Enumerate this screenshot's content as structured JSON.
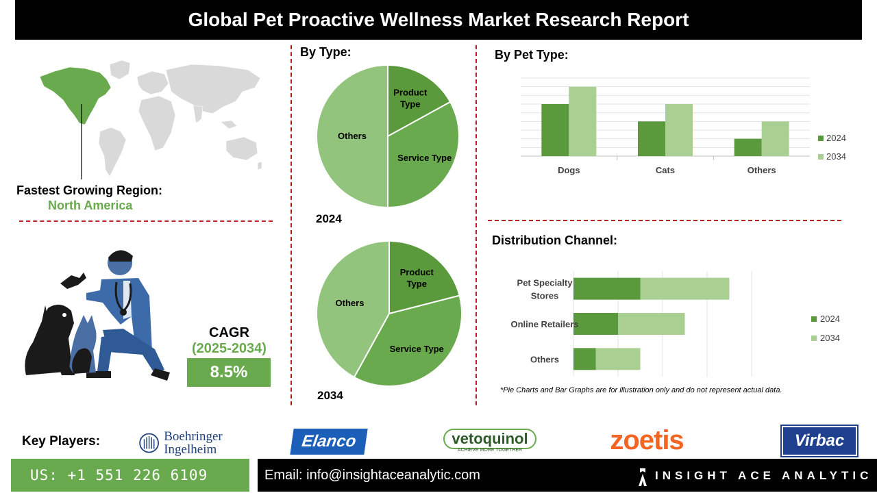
{
  "title": "Global Pet Proactive Wellness Market Research Report",
  "region": {
    "label": "Fastest Growing Region:",
    "value": "North America"
  },
  "cagr": {
    "label": "CAGR",
    "years": "(2025-2034)",
    "value": "8.5%"
  },
  "sections": {
    "by_type": "By Type:",
    "by_pet_type": "By Pet Type:",
    "distribution": "Distribution Channel:"
  },
  "footnote": "*Pie Charts and Bar Graphs are for illustration only and do not represent actual data.",
  "key_players": {
    "label": "Key Players:",
    "logos": [
      "Boehringer Ingelheim",
      "Elanco",
      "vetoquinol",
      "zoetis",
      "Virbac"
    ],
    "vetoquinol_tagline": "ACHIEVE MORE TOGETHER"
  },
  "contact": {
    "phone": "US: +1 551 226 6109",
    "email": "Email: info@insightaceanalytic.com",
    "brand": "INSIGHT ACE ANALYTIC"
  },
  "colors": {
    "dark_green": "#5a9a3c",
    "mid_green": "#6aaa4f",
    "light_green": "#a9cf93",
    "pie_light": "#93c47d",
    "dash_red": "#b52025"
  },
  "chart_data": [
    {
      "type": "pie",
      "year_label": "2024",
      "slices": [
        {
          "label": "Product Type",
          "value": 17
        },
        {
          "label": "Service Type",
          "value": 33
        },
        {
          "label": "Others",
          "value": 50
        }
      ]
    },
    {
      "type": "pie",
      "year_label": "2034",
      "slices": [
        {
          "label": "Product Type",
          "value": 21
        },
        {
          "label": "Service Type",
          "value": 37
        },
        {
          "label": "Others",
          "value": 42
        }
      ]
    },
    {
      "type": "bar",
      "orientation": "vertical",
      "categories": [
        "Dogs",
        "Cats",
        "Others"
      ],
      "series": [
        {
          "name": "2024",
          "values": [
            3,
            2,
            1
          ]
        },
        {
          "name": "2034",
          "values": [
            4,
            3,
            2
          ]
        }
      ],
      "ylim": [
        0,
        4.5
      ],
      "grid": true,
      "legend": "right"
    },
    {
      "type": "bar",
      "orientation": "horizontal",
      "stacked": true,
      "categories": [
        "Pet Specialty Stores",
        "Online Retailers",
        "Others"
      ],
      "category_lines": [
        [
          "Pet Specialty",
          "Stores"
        ],
        [
          "Online Retailers"
        ],
        [
          "Others"
        ]
      ],
      "series": [
        {
          "name": "2024",
          "values": [
            3,
            2,
            1
          ]
        },
        {
          "name": "2034",
          "values": [
            4,
            3,
            2
          ]
        }
      ],
      "xlim": [
        0,
        8
      ],
      "grid": true,
      "legend": "right"
    }
  ]
}
